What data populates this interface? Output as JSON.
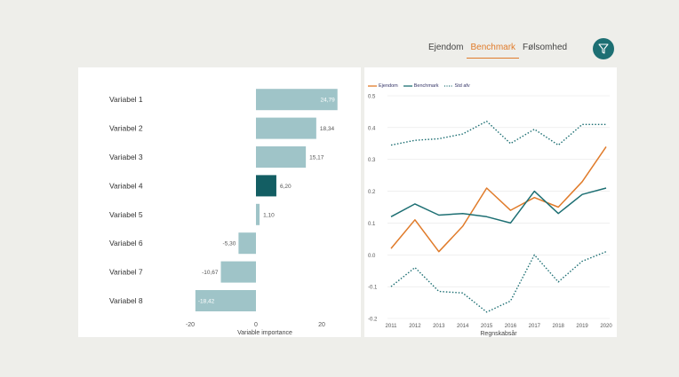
{
  "tabs": [
    {
      "label": "Ejendom",
      "active": false
    },
    {
      "label": "Benchmark",
      "active": true
    },
    {
      "label": "Følsomhed",
      "active": false
    }
  ],
  "filter_icon": "funnel-icon",
  "colors": {
    "accent": "#e07b2a",
    "teal": "#1d6f73",
    "bar": "#9fc4c8",
    "bar_highlight": "#135e63"
  },
  "chart_data": [
    {
      "type": "bar",
      "orientation": "horizontal",
      "categories": [
        "Variabel 1",
        "Variabel 2",
        "Variabel 3",
        "Variabel 4",
        "Variabel 5",
        "Variabel 6",
        "Variabel 7",
        "Variabel 8"
      ],
      "values": [
        24.79,
        18.34,
        15.17,
        6.2,
        1.1,
        -5.3,
        -10.67,
        -18.42
      ],
      "value_labels": [
        "24,79",
        "18,34",
        "15,17",
        "6,20",
        "1,10",
        "-5,30",
        "-10,67",
        "-18,42"
      ],
      "highlight_index": 3,
      "xlabel": "Variable importance",
      "xticks": [
        "-20",
        "0",
        "20"
      ],
      "xtick_values": [
        -20,
        0,
        20
      ],
      "xlim": [
        -20,
        25
      ]
    },
    {
      "type": "line",
      "x": [
        2011,
        2012,
        2013,
        2014,
        2015,
        2016,
        2017,
        2018,
        2019,
        2020
      ],
      "xticks": [
        "2011",
        "2012",
        "2013",
        "2014",
        "2015",
        "2016",
        "2017",
        "2018",
        "2019",
        "2020"
      ],
      "yticks": [
        "0.5",
        "0.4",
        "0.3",
        "0.2",
        "0.1",
        "0.0",
        "-0.1",
        "-0.2"
      ],
      "ytick_values": [
        0.5,
        0.4,
        0.3,
        0.2,
        0.1,
        0.0,
        -0.1,
        -0.2
      ],
      "ylim": [
        -0.2,
        0.5
      ],
      "xlabel": "Regnskabsår",
      "legend_position": "top-left",
      "series": [
        {
          "name": "Ejendom",
          "style": "solid",
          "color": "#e07b2a",
          "values": [
            0.02,
            0.11,
            0.01,
            0.09,
            0.21,
            0.14,
            0.18,
            0.15,
            0.23,
            0.34
          ]
        },
        {
          "name": "Benchmark",
          "style": "solid",
          "color": "#1d6f73",
          "values": [
            0.12,
            0.16,
            0.125,
            0.13,
            0.12,
            0.1,
            0.2,
            0.13,
            0.19,
            0.21
          ]
        },
        {
          "name": "Std afv",
          "style": "dotted",
          "color": "#1d6f73",
          "values": [
            0.345,
            0.36,
            0.365,
            0.38,
            0.42,
            0.35,
            0.395,
            0.345,
            0.41,
            0.41
          ]
        },
        {
          "name": "",
          "style": "dotted",
          "color": "#1d6f73",
          "values": [
            -0.1,
            -0.04,
            -0.115,
            -0.12,
            -0.18,
            -0.145,
            0.0,
            -0.085,
            -0.02,
            0.01
          ]
        }
      ]
    }
  ]
}
